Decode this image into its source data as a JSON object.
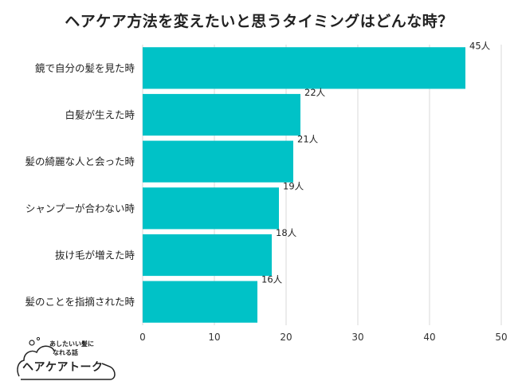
{
  "title": "ヘアケア方法を変えたいと思うタイミングはどんな時？",
  "colors": {
    "bar": "#00C2C7",
    "grid": "#d9d9d9",
    "text": "#222222"
  },
  "chart_data": {
    "type": "bar",
    "orientation": "horizontal",
    "categories": [
      "鏡で自分の髪を見た時",
      "白髪が生えた時",
      "髪の綺麗な人と会った時",
      "シャンプーが合わない時",
      "抜け毛が増えた時",
      "髪のことを指摘された時"
    ],
    "values": [
      45,
      22,
      21,
      19,
      18,
      16
    ],
    "value_labels": [
      "45人",
      "22人",
      "21人",
      "19人",
      "18人",
      "16人"
    ],
    "xlim": [
      0,
      50
    ],
    "xticks": [
      0,
      10,
      20,
      30,
      40,
      50
    ],
    "grid": true
  },
  "logo": {
    "tagline_line1": "あしたいい髪に",
    "tagline_line2": "なれる話",
    "brand": "ヘアケアトーク"
  }
}
